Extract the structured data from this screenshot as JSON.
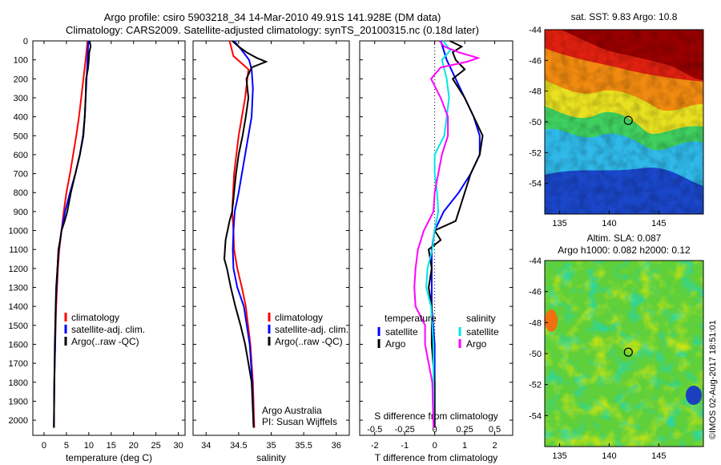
{
  "header": {
    "line1": "Argo profile: csiro 5903218_34 14-Mar-2010 49.91S 141.928E (DM data)",
    "line2": "Climatology: CARS2009. Satellite-adjusted climatology: synTS_20100315.nc (0.18d later)"
  },
  "colors": {
    "climatology": "#ff0000",
    "satellite": "#0000ff",
    "argo": "#000000",
    "argo_salinity": "#ff00ff",
    "satellite_salinity": "#00e5e5"
  },
  "chart_data": [
    {
      "type": "line",
      "name": "temperature",
      "xlabel": "temperature (deg C)",
      "ylabel": "",
      "xlim": [
        -2.5,
        31.5
      ],
      "ylim": [
        2080,
        0
      ],
      "xticks": [
        0,
        5,
        10,
        15,
        20,
        25,
        30
      ],
      "yticks": [
        0,
        100,
        200,
        300,
        400,
        500,
        600,
        700,
        800,
        900,
        1000,
        1100,
        1200,
        1300,
        1400,
        1500,
        1600,
        1700,
        1800,
        1900,
        2000
      ],
      "legend": [
        "climatology",
        "satellite-adj. clim.",
        "Argo(..raw -QC)"
      ],
      "legend_position": "lower-middle",
      "series": [
        {
          "name": "climatology",
          "color": "#ff0000",
          "depth": [
            0,
            50,
            100,
            200,
            300,
            400,
            500,
            600,
            700,
            800,
            900,
            1000,
            1100,
            1200,
            1300,
            1400,
            1600,
            1800,
            2040
          ],
          "values": [
            9.7,
            9.5,
            9.3,
            8.8,
            8.3,
            7.8,
            7.2,
            6.5,
            5.8,
            5.0,
            4.4,
            3.9,
            3.4,
            3.1,
            2.9,
            2.7,
            2.5,
            2.3,
            2.2
          ]
        },
        {
          "name": "satellite",
          "color": "#0000ff",
          "depth": [
            0,
            50,
            100,
            200,
            300,
            400,
            500,
            600,
            700,
            800,
            900,
            1000,
            1100,
            1200,
            1300,
            1400,
            1600,
            1800,
            2040
          ],
          "values": [
            9.9,
            9.8,
            9.7,
            9.5,
            9.3,
            9.1,
            8.7,
            8.0,
            7.0,
            5.8,
            4.7,
            3.9,
            3.3,
            3.0,
            2.8,
            2.6,
            2.5,
            2.3,
            2.2
          ]
        },
        {
          "name": "Argo",
          "color": "#000000",
          "depth": [
            0,
            30,
            60,
            100,
            150,
            200,
            300,
            400,
            500,
            600,
            700,
            800,
            900,
            950,
            1000,
            1050,
            1100,
            1200,
            1300,
            1400,
            1600,
            1800,
            2040
          ],
          "values": [
            10.2,
            10.4,
            10.1,
            10.0,
            9.8,
            9.4,
            9.3,
            9.1,
            8.8,
            8.0,
            7.0,
            6.0,
            5.2,
            4.6,
            3.9,
            3.6,
            3.2,
            3.0,
            2.7,
            2.6,
            2.4,
            2.3,
            2.2
          ]
        }
      ]
    },
    {
      "type": "line",
      "name": "salinity",
      "xlabel": "salinity",
      "ylabel": "",
      "xlim": [
        33.8,
        36.2
      ],
      "ylim": [
        2080,
        0
      ],
      "xticks": [
        34,
        34.5,
        35,
        35.5,
        36
      ],
      "xtick_labels": [
        "34",
        "34.5",
        "35",
        "35.5",
        "36"
      ],
      "legend": [
        "climatology",
        "satellite-adj. clim.",
        "Argo(..raw -QC)"
      ],
      "legend_position": "lower-right",
      "annotation": [
        "Argo Australia",
        "PI: Susan Wijffels"
      ],
      "series": [
        {
          "name": "climatology",
          "color": "#ff0000",
          "depth": [
            0,
            80,
            150,
            300,
            500,
            700,
            900,
            1000,
            1100,
            1200,
            1300,
            1400,
            1600,
            1800,
            2040
          ],
          "values": [
            34.36,
            34.42,
            34.65,
            34.6,
            34.5,
            34.43,
            34.4,
            34.42,
            34.43,
            34.48,
            34.55,
            34.61,
            34.68,
            34.72,
            34.74
          ]
        },
        {
          "name": "satellite",
          "color": "#0000ff",
          "depth": [
            0,
            50,
            100,
            150,
            250,
            400,
            600,
            800,
            900,
            1000,
            1100,
            1200,
            1300,
            1400,
            1600,
            1800,
            2040
          ],
          "values": [
            34.43,
            34.55,
            34.66,
            34.7,
            34.72,
            34.7,
            34.6,
            34.5,
            34.44,
            34.42,
            34.41,
            34.42,
            34.48,
            34.58,
            34.67,
            34.71,
            34.73
          ]
        },
        {
          "name": "Argo",
          "color": "#000000",
          "depth": [
            0,
            30,
            60,
            90,
            110,
            140,
            200,
            300,
            400,
            500,
            600,
            700,
            800,
            900,
            950,
            1000,
            1050,
            1100,
            1150,
            1200,
            1300,
            1400,
            1500,
            1600,
            1700,
            1800,
            2040
          ],
          "values": [
            34.4,
            34.5,
            34.62,
            34.78,
            34.92,
            34.7,
            34.62,
            34.65,
            34.61,
            34.56,
            34.5,
            34.46,
            34.43,
            34.4,
            34.36,
            34.33,
            34.3,
            34.29,
            34.28,
            34.32,
            34.38,
            34.45,
            34.53,
            34.6,
            34.65,
            34.7,
            34.73
          ]
        }
      ]
    },
    {
      "type": "line",
      "name": "difference-from-climatology",
      "xlabel": "T difference from climatology",
      "xlabel_top": "S difference from climatology",
      "xlim": [
        -2.5,
        2.6
      ],
      "ylim": [
        2080,
        0
      ],
      "xticks": [
        -2,
        -1,
        0,
        1,
        2
      ],
      "xtick_labels": [
        "-2",
        "-1",
        "0",
        "1",
        "2"
      ],
      "top_ticks": [
        -0.5,
        -0.25,
        0,
        0.25,
        0.5
      ],
      "top_tick_labels": [
        "-0.5",
        "-0.25",
        "0",
        "0.25",
        "0.5"
      ],
      "top_xlim": [
        -0.625,
        0.65
      ],
      "legend_titles": [
        "temperature",
        "salinity"
      ],
      "legend_left": [
        "satellite",
        "Argo"
      ],
      "legend_right": [
        "satellite",
        "Argo"
      ],
      "legend_position": "lower-middle",
      "series": [
        {
          "name": "temperature satellite",
          "axis": "T",
          "color": "#0000ff",
          "depth": [
            0,
            50,
            100,
            200,
            300,
            400,
            500,
            600,
            700,
            800,
            900,
            1000,
            1100,
            1200,
            1300,
            1400,
            1600,
            1800,
            2040
          ],
          "values": [
            0.2,
            0.3,
            0.4,
            0.7,
            1.0,
            1.3,
            1.5,
            1.5,
            1.2,
            0.8,
            0.3,
            0.0,
            -0.1,
            -0.1,
            -0.1,
            -0.1,
            0.0,
            0.0,
            0.0
          ]
        },
        {
          "name": "temperature Argo",
          "axis": "T",
          "color": "#000000",
          "depth": [
            0,
            30,
            60,
            100,
            150,
            200,
            300,
            400,
            500,
            600,
            700,
            800,
            900,
            950,
            1000,
            1050,
            1100,
            1200,
            1300,
            1400,
            1600,
            1800,
            2040
          ],
          "values": [
            0.5,
            0.9,
            0.6,
            0.7,
            1.0,
            0.6,
            1.0,
            1.3,
            1.6,
            1.5,
            1.2,
            1.0,
            0.8,
            0.7,
            0.0,
            0.2,
            -0.2,
            -0.1,
            -0.2,
            -0.1,
            -0.1,
            0.0,
            0.0
          ]
        },
        {
          "name": "salinity satellite",
          "axis": "S",
          "color": "#00e5e5",
          "depth": [
            0,
            50,
            100,
            200,
            300,
            400,
            500,
            600,
            700,
            800,
            900,
            1000,
            1100,
            1200,
            1300,
            1400,
            1600,
            1800,
            2040
          ],
          "values": [
            0.07,
            0.13,
            0.06,
            0.1,
            0.12,
            0.1,
            0.08,
            0.0,
            0.0,
            0.02,
            0.03,
            0.0,
            -0.02,
            -0.06,
            -0.07,
            -0.03,
            -0.01,
            -0.01,
            -0.01
          ]
        },
        {
          "name": "salinity Argo",
          "axis": "S",
          "color": "#ff00ff",
          "depth": [
            0,
            30,
            60,
            90,
            110,
            140,
            200,
            300,
            400,
            500,
            600,
            700,
            800,
            900,
            1000,
            1100,
            1200,
            1300,
            1400,
            1500,
            1600,
            1800,
            2040
          ],
          "values": [
            0.04,
            0.08,
            0.2,
            0.36,
            0.27,
            0.05,
            -0.03,
            0.05,
            0.11,
            0.11,
            0.06,
            0.03,
            0.0,
            -0.01,
            -0.09,
            -0.14,
            -0.16,
            -0.17,
            -0.16,
            -0.08,
            -0.08,
            -0.02,
            -0.01
          ]
        }
      ]
    },
    {
      "type": "heatmap",
      "name": "satellite-sst-map",
      "title": "sat. SST: 9.83 Argo: 10.8",
      "xlim": [
        133.5,
        149.5
      ],
      "ylim": [
        -56,
        -44
      ],
      "xticks": [
        135,
        140,
        145
      ],
      "yticks": [
        -44,
        -46,
        -48,
        -50,
        -52,
        -54
      ],
      "marker": {
        "lon": 141.928,
        "lat": -49.91
      }
    },
    {
      "type": "heatmap",
      "name": "altimetry-sla-map",
      "title": "Altim. SLA: 0.087",
      "subtitle": "Argo h1000: 0.082 h2000: 0.12",
      "xlim": [
        133.5,
        149.5
      ],
      "ylim": [
        -56,
        -44
      ],
      "xticks": [
        135,
        140,
        145
      ],
      "yticks": [
        -44,
        -46,
        -48,
        -50,
        -52,
        -54
      ],
      "marker": {
        "lon": 141.928,
        "lat": -49.91
      }
    }
  ],
  "footer": {
    "stamp": "©IMOS 02-Aug-2017 18:51:01"
  }
}
